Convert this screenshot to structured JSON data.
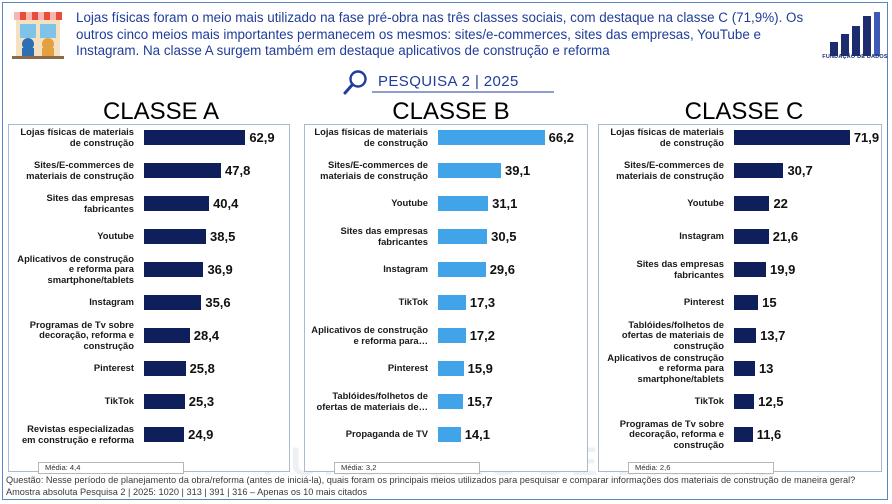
{
  "header": {
    "text": "Lojas físicas foram o meio mais utilizado na fase pré-obra nas três classes sociais, com destaque na classe C (71,9%). Os outros cinco meios mais importantes permanecem os mesmos: sites/e-commerces, sites das empresas, YouTube e Instagram. Na classe A surgem também em destaque aplicativos de construção e reforma"
  },
  "logo": {
    "caption": "FUNDAÇÃO DE DADOS"
  },
  "subheader": {
    "label": "PESQUISA 2 | 2025"
  },
  "watermark": "FUNDAÇÃO DE DADOS",
  "chart_data": [
    {
      "type": "bar",
      "orientation": "horizontal",
      "title": "CLASSE A",
      "color": "#0f1f5c",
      "categories": [
        "Lojas físicas de materiais de construção",
        "Sites/E-commerces de materiais de construção",
        "Sites das empresas fabricantes",
        "Youtube",
        "Aplicativos de construção e reforma para smartphone/tablets",
        "Instagram",
        "Programas de Tv sobre decoração, reforma e construção",
        "Pinterest",
        "TikTok",
        "Revistas especializadas em construção e reforma"
      ],
      "values": [
        62.9,
        47.8,
        40.4,
        38.5,
        36.9,
        35.6,
        28.4,
        25.8,
        25.3,
        24.9
      ],
      "labels": [
        "62,9",
        "47,8",
        "40,4",
        "38,5",
        "36,9",
        "35,6",
        "28,4",
        "25,8",
        "25,3",
        "24,9"
      ],
      "media": "Média: 4,4"
    },
    {
      "type": "bar",
      "orientation": "horizontal",
      "title": "CLASSE B",
      "color": "#41a3e8",
      "categories": [
        "Lojas físicas de materiais de construção",
        "Sites/E-commerces de materiais de construção",
        "Youtube",
        "Sites das empresas fabricantes",
        "Instagram",
        "TikTok",
        "Aplicativos de construção e reforma para…",
        "Pinterest",
        "Tablóides/folhetos de ofertas de materiais de…",
        "Propaganda de TV"
      ],
      "values": [
        66.2,
        39.1,
        31.1,
        30.5,
        29.6,
        17.3,
        17.2,
        15.9,
        15.7,
        14.1
      ],
      "labels": [
        "66,2",
        "39,1",
        "31,1",
        "30,5",
        "29,6",
        "17,3",
        "17,2",
        "15,9",
        "15,7",
        "14,1"
      ],
      "media": "Média: 3,2"
    },
    {
      "type": "bar",
      "orientation": "horizontal",
      "title": "CLASSE C",
      "color": "#0f1f5c",
      "categories": [
        "Lojas físicas de materiais de construção",
        "Sites/E-commerces de materiais de construção",
        "Youtube",
        "Instagram",
        "Sites das empresas fabricantes",
        "Pinterest",
        "Tablóides/folhetos de ofertas de materiais de construção",
        "Aplicativos de construção e reforma para smartphone/tablets",
        "TikTok",
        "Programas de Tv sobre decoração, reforma e construção"
      ],
      "values": [
        71.9,
        30.7,
        22,
        21.6,
        19.9,
        15,
        13.7,
        13,
        12.5,
        11.6
      ],
      "labels": [
        "71,9",
        "30,7",
        "22",
        "21,6",
        "19,9",
        "15",
        "13,7",
        "13",
        "12,5",
        "11,6"
      ],
      "media": "Média: 2,6"
    }
  ],
  "footer": {
    "question": "Questão: Nesse período de planejamento da obra/reforma (antes de iniciá-la), quais foram os principais meios utilizados para pesquisar e comparar informações dos materiais de construção de maneira geral?",
    "sample": "Amostra absoluta Pesquisa 2 | 2025: 1020 | 313 | 391 | 316 – Apenas os 10 mais citados"
  }
}
